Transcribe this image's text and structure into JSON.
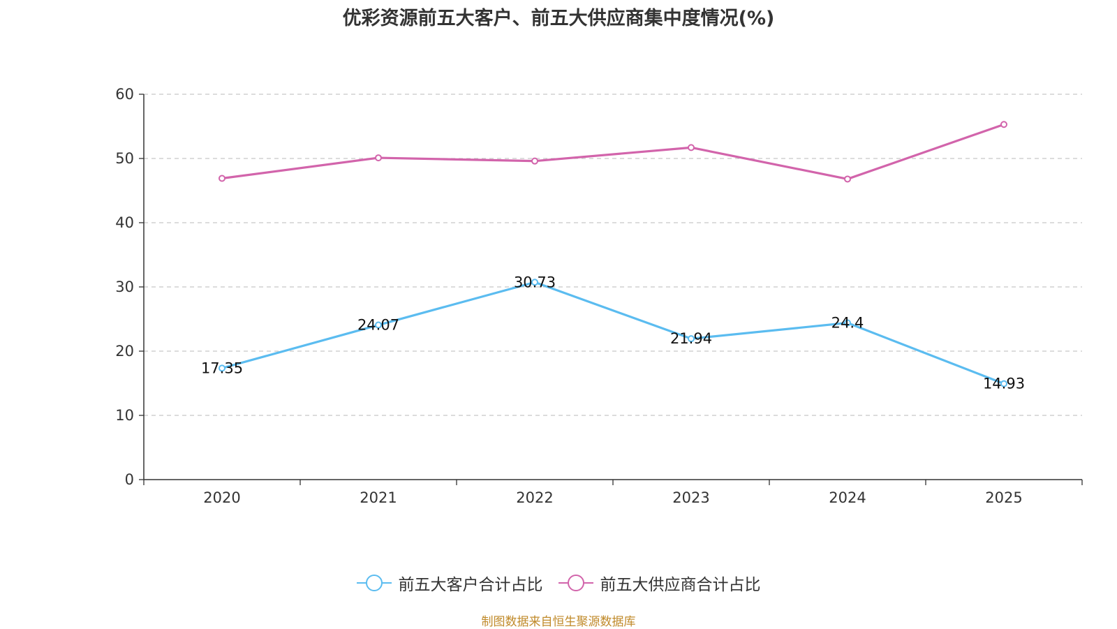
{
  "chart_data": {
    "type": "line",
    "title": "优彩资源前五大客户、前五大供应商集中度情况(%)",
    "categories": [
      "2020",
      "2021",
      "2022",
      "2023",
      "2024",
      "2025"
    ],
    "series": [
      {
        "name": "前五大客户合计占比",
        "color": "#5bbcf0",
        "values": [
          17.35,
          24.07,
          30.73,
          21.94,
          24.4,
          14.93
        ],
        "labels": [
          "17.35",
          "24.07",
          "30.73",
          "21.94",
          "24.4",
          "14.93"
        ],
        "show_labels": true
      },
      {
        "name": "前五大供应商合计占比",
        "color": "#d264ab",
        "values": [
          46.9,
          50.1,
          49.6,
          51.7,
          46.8,
          55.3
        ],
        "show_labels": false
      }
    ],
    "ylim": [
      0,
      60
    ],
    "yticks": [
      "0",
      "10",
      "20",
      "30",
      "40",
      "50",
      "60"
    ],
    "grid": true,
    "legend_position": "bottom-center"
  },
  "source_note": "制图数据来自恒生聚源数据库"
}
